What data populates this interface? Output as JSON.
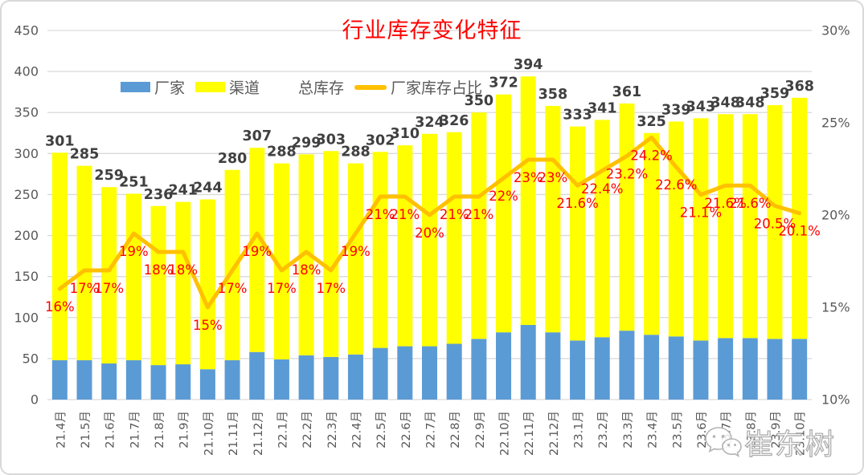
{
  "title": {
    "text": "行业库存变化特征",
    "color": "#FF0000"
  },
  "legend": [
    {
      "label": "厂家",
      "swatch": "bar",
      "color": "#5B9BD5"
    },
    {
      "label": "渠道",
      "swatch": "bar",
      "color": "#FFFF00"
    },
    {
      "label": "总库存",
      "swatch": "none",
      "color": "transparent"
    },
    {
      "label": "厂家库存占比",
      "swatch": "line",
      "color": "#FFC000"
    }
  ],
  "watermark": {
    "text": "崔东树",
    "icon": "wechat-icon"
  },
  "colors": {
    "manufacturer_bar": "#5B9BD5",
    "channel_bar": "#FFFF00",
    "share_line": "#FFC000",
    "percent_label": "#FF0000",
    "total_label": "#404040",
    "axis_text": "#595959",
    "gridline": "#D9D9D9",
    "title": "#FF0000"
  },
  "chart_data": {
    "type": "combo-stacked-bar-line",
    "title": "行业库存变化特征",
    "categories": [
      "21.4月",
      "21.5月",
      "21.6月",
      "21.7月",
      "21.8月",
      "21.9月",
      "21.10月",
      "21.11月",
      "21.12月",
      "22.1月",
      "22.2月",
      "22.3月",
      "22.4月",
      "22.5月",
      "22.6月",
      "22.7月",
      "22.8月",
      "22.9月",
      "22.10月",
      "22.11月",
      "22.12月",
      "23.1月",
      "23.2月",
      "23.3月",
      "23.4月",
      "23.5月",
      "23.6月",
      "23.7月",
      "23.8月",
      "23.9月",
      "23.10月"
    ],
    "series": [
      {
        "name": "厂家",
        "type": "bar",
        "stack": "inventory",
        "color": "#5B9BD5",
        "values": [
          48,
          48,
          44,
          48,
          42,
          43,
          37,
          48,
          58,
          49,
          54,
          52,
          55,
          63,
          65,
          65,
          68,
          74,
          82,
          91,
          82,
          72,
          76,
          84,
          79,
          77,
          72,
          75,
          75,
          74,
          74
        ]
      },
      {
        "name": "渠道",
        "type": "bar",
        "stack": "inventory",
        "color": "#FFFF00",
        "values": [
          253,
          237,
          215,
          203,
          194,
          198,
          207,
          232,
          249,
          239,
          245,
          251,
          233,
          239,
          245,
          259,
          258,
          276,
          290,
          303,
          276,
          261,
          265,
          277,
          246,
          262,
          271,
          273,
          273,
          285,
          294
        ]
      },
      {
        "name": "总库存",
        "type": "labels",
        "color": "#404040",
        "values": [
          301,
          285,
          259,
          251,
          236,
          241,
          244,
          280,
          307,
          288,
          299,
          303,
          288,
          302,
          310,
          324,
          326,
          350,
          372,
          394,
          358,
          333,
          341,
          361,
          325,
          339,
          343,
          348,
          348,
          359,
          368
        ]
      },
      {
        "name": "厂家库存占比",
        "type": "line",
        "axis": "right",
        "color": "#FFC000",
        "label_color": "#FF0000",
        "values": [
          16,
          17,
          17,
          19,
          18,
          18,
          15,
          17,
          19,
          17,
          18,
          17,
          19,
          21,
          21,
          20,
          21,
          21,
          22,
          23,
          23,
          21.6,
          22.4,
          23.2,
          24.2,
          22.6,
          21.1,
          21.6,
          21.6,
          20.5,
          20.1
        ],
        "labels": [
          "16%",
          "17%",
          "17%",
          "19%",
          "18%",
          "18%",
          "15%",
          "17%",
          "19%",
          "17%",
          "18%",
          "17%",
          "19%",
          "21%",
          "21%",
          "20%",
          "21%",
          "21%",
          "22%",
          "23%",
          "23%",
          "21.6%",
          "22.4%",
          "23.2%",
          "24.2%",
          "22.6%",
          "21.1%",
          "21.6%",
          "21.6%",
          "20.5%",
          "20.1%"
        ]
      }
    ],
    "left_axis": {
      "min": 0,
      "max": 450,
      "step": 50,
      "ticks": [
        "0",
        "50",
        "100",
        "150",
        "200",
        "250",
        "300",
        "350",
        "400",
        "450"
      ]
    },
    "right_axis": {
      "min": 10,
      "max": 30,
      "step": 5,
      "ticks": [
        "10%",
        "15%",
        "20%",
        "25%",
        "30%"
      ]
    },
    "grid": true,
    "legend_position": "top"
  }
}
